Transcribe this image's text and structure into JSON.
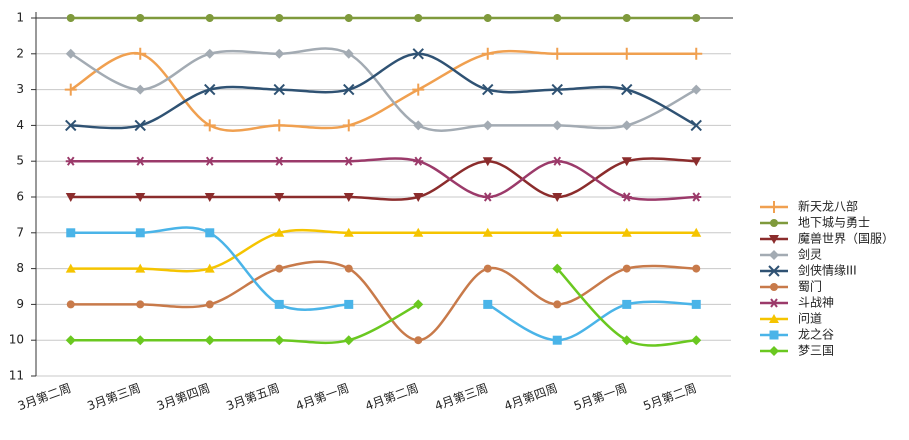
{
  "chart_data": {
    "type": "line",
    "categories": [
      "3月第二周",
      "3月第三周",
      "3月第四周",
      "3月第五周",
      "4月第一周",
      "4月第二周",
      "4月第三周",
      "4月第四周",
      "5月第一周",
      "5月第二周"
    ],
    "ylim": [
      1,
      11
    ],
    "y_inverted": true,
    "yticks": [
      1,
      2,
      3,
      4,
      5,
      6,
      7,
      8,
      9,
      10,
      11
    ],
    "grid": true,
    "legend": "right",
    "series": [
      {
        "name": "新天龙八部",
        "color": "#f0a050",
        "marker": "plus",
        "values": [
          3,
          2,
          4,
          4,
          4,
          3,
          2,
          2,
          2,
          2
        ]
      },
      {
        "name": "地下城与勇士",
        "color": "#7f9a3c",
        "marker": "circle",
        "values": [
          1,
          1,
          1,
          1,
          1,
          1,
          1,
          1,
          1,
          1
        ]
      },
      {
        "name": "魔兽世界（国服）",
        "color": "#8b2c2c",
        "marker": "triangle-down",
        "values": [
          6,
          6,
          6,
          6,
          6,
          6,
          5,
          6,
          5,
          5
        ]
      },
      {
        "name": "剑灵",
        "color": "#a3abb3",
        "marker": "diamond",
        "values": [
          2,
          3,
          2,
          2,
          2,
          4,
          4,
          4,
          4,
          3
        ]
      },
      {
        "name": "剑侠情缘III",
        "color": "#2f5273",
        "marker": "x",
        "values": [
          4,
          4,
          3,
          3,
          3,
          2,
          3,
          3,
          3,
          4
        ]
      },
      {
        "name": "蜀门",
        "color": "#c87a4a",
        "marker": "circle",
        "values": [
          9,
          9,
          9,
          8,
          8,
          10,
          8,
          9,
          8,
          8
        ]
      },
      {
        "name": "斗战神",
        "color": "#9b3a6a",
        "marker": "asterisk",
        "values": [
          5,
          5,
          5,
          5,
          5,
          5,
          6,
          5,
          6,
          6
        ]
      },
      {
        "name": "问道",
        "color": "#f5c400",
        "marker": "triangle-up",
        "values": [
          8,
          8,
          8,
          7,
          7,
          7,
          7,
          7,
          7,
          7
        ]
      },
      {
        "name": "龙之谷",
        "color": "#4ab4e8",
        "marker": "square",
        "values": [
          7,
          7,
          7,
          9,
          9,
          null,
          9,
          10,
          9,
          9
        ]
      },
      {
        "name": "梦三国",
        "color": "#6ac820",
        "marker": "diamond",
        "values": [
          10,
          10,
          10,
          10,
          10,
          9,
          null,
          8,
          10,
          10
        ]
      }
    ]
  }
}
